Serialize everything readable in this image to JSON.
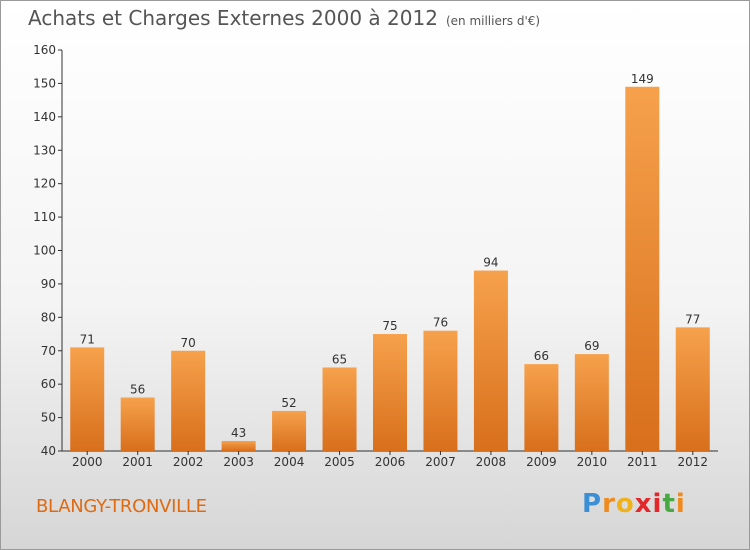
{
  "title": "Achats et Charges Externes 2000 à 2012",
  "unit": "(en milliers d'€)",
  "commune": "BLANGY-TRONVILLE",
  "logo": {
    "letters": [
      "P",
      "r",
      "o",
      "x",
      "i",
      "t",
      "i"
    ],
    "colors": [
      "#3b8fd6",
      "#f08a1c",
      "#f0b21c",
      "#e3272b",
      "#e3272b",
      "#4aa844",
      "#f08a1c"
    ]
  },
  "colors": {
    "bar": "#e8822a",
    "bar_light": "#f6a14c",
    "grid": "#e0e0e0",
    "axis": "#333333"
  },
  "chart_data": {
    "type": "bar",
    "categories": [
      "2000",
      "2001",
      "2002",
      "2003",
      "2004",
      "2005",
      "2006",
      "2007",
      "2008",
      "2009",
      "2010",
      "2011",
      "2012"
    ],
    "values": [
      71,
      56,
      70,
      43,
      52,
      65,
      75,
      76,
      94,
      66,
      69,
      149,
      77
    ],
    "data_labels": [
      "71",
      "56",
      "70",
      "43",
      "52",
      "65",
      "75",
      "76",
      "94",
      "66",
      "69",
      "149",
      "77"
    ],
    "ylim": [
      40,
      160
    ],
    "yticks": [
      "40",
      "50",
      "60",
      "70",
      "80",
      "90",
      "100",
      "110",
      "120",
      "130",
      "140",
      "150",
      "160"
    ],
    "xlabel": "",
    "ylabel": "",
    "grid": false,
    "legend": "none"
  }
}
